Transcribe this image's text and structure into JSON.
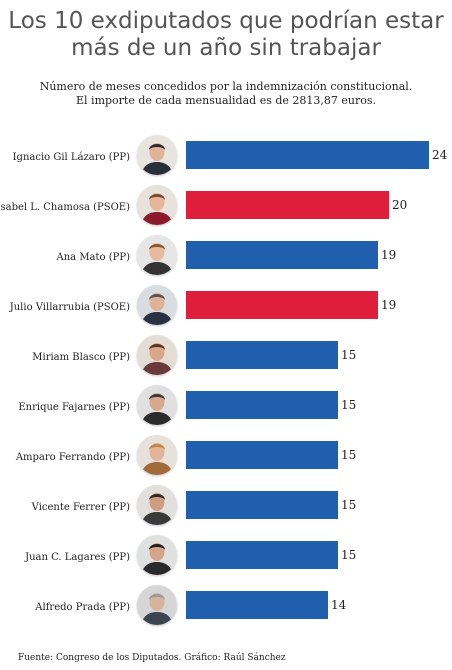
{
  "chart_data": {
    "type": "bar",
    "orientation": "horizontal",
    "title_lines": [
      "Los 10 exdiputados que podrían estar",
      "más de un año sin trabajar"
    ],
    "subtitle_lines": [
      "Número de meses concedidos por la indemnización constitucional.",
      "El importe de cada mensualidad es de 2813,87 euros."
    ],
    "categories": [
      "Ignacio Gil Lázaro (PP)",
      "Isabel L. Chamosa (PSOE)",
      "Ana Mato (PP)",
      "Julio Villarrubia (PSOE)",
      "Miriam Blasco (PP)",
      "Enrique Fajarnes (PP)",
      "Amparo Ferrando (PP)",
      "Vicente Ferrer (PP)",
      "Juan C. Lagares (PP)",
      "Alfredo Prada (PP)"
    ],
    "values": [
      24,
      20,
      19,
      19,
      15,
      15,
      15,
      15,
      15,
      14
    ],
    "parties": [
      "PP",
      "PSOE",
      "PP",
      "PSOE",
      "PP",
      "PP",
      "PP",
      "PP",
      "PP",
      "PP"
    ],
    "party_colors": {
      "PP": "#1f5fae",
      "PSOE": "#de1e3a"
    },
    "xlim": [
      0,
      24
    ],
    "footer": "Fuente: Congreso de los Diputados. Gráfico: Raúl Sánchez"
  }
}
